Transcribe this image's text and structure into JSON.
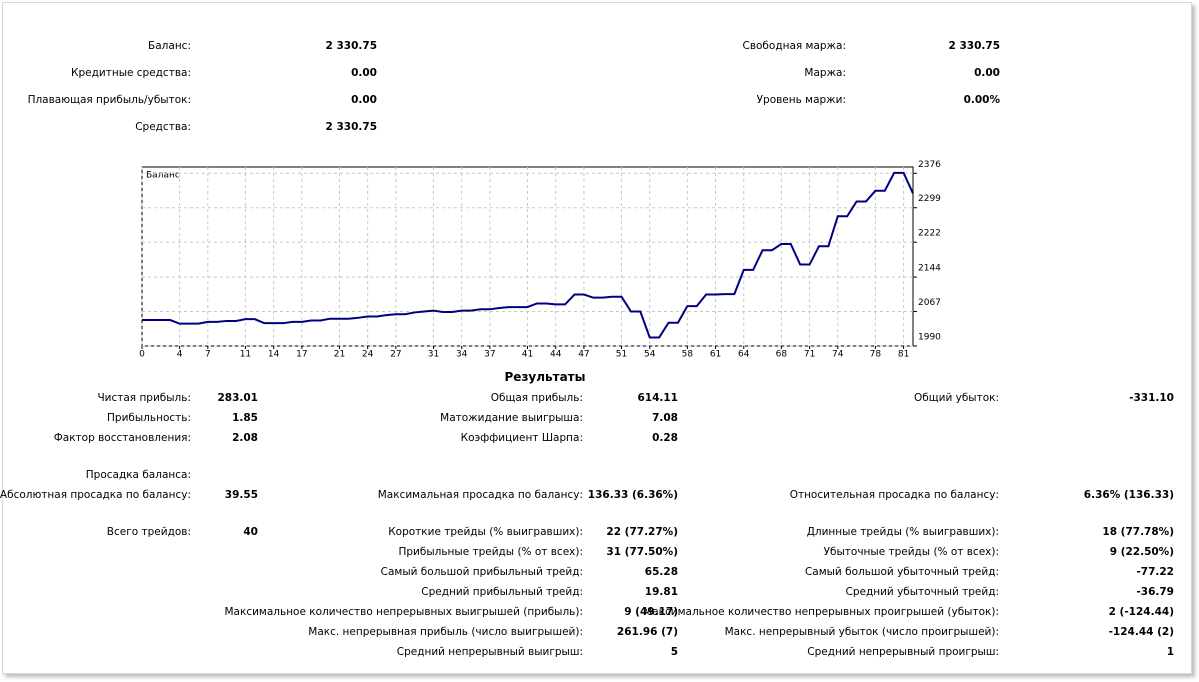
{
  "account": {
    "rows": [
      {
        "left": {
          "label": "Баланс:",
          "value": "2 330.75"
        },
        "right": {
          "label": "Свободная маржа:",
          "value": "2 330.75"
        }
      },
      {
        "left": {
          "label": "Кредитные средства:",
          "value": "0.00"
        },
        "right": {
          "label": "Маржа:",
          "value": "0.00"
        }
      },
      {
        "left": {
          "label": "Плавающая прибыль/убыток:",
          "value": "0.00"
        },
        "right": {
          "label": "Уровень маржи:",
          "value": "0.00%"
        }
      },
      {
        "left": {
          "label": "Средства:",
          "value": "2 330.75"
        }
      }
    ]
  },
  "chart_data": {
    "type": "line",
    "title": "Баланс",
    "color": "#000080",
    "grid": true,
    "x": [
      0,
      1,
      2,
      3,
      4,
      5,
      6,
      7,
      8,
      9,
      10,
      11,
      12,
      13,
      14,
      15,
      16,
      17,
      18,
      19,
      20,
      21,
      22,
      23,
      24,
      25,
      26,
      27,
      28,
      29,
      30,
      31,
      32,
      33,
      34,
      35,
      36,
      37,
      38,
      39,
      40,
      41,
      42,
      43,
      44,
      45,
      46,
      47,
      48,
      49,
      50,
      51,
      52,
      53,
      54,
      55,
      56,
      57,
      58,
      59,
      60,
      61,
      62,
      63,
      64,
      65,
      66,
      67,
      68,
      69,
      70,
      71,
      72,
      73,
      74,
      75,
      76,
      77,
      78,
      79,
      80,
      81,
      82
    ],
    "values": [
      2048,
      2048,
      2048,
      2048,
      2040,
      2040,
      2040,
      2044,
      2044,
      2046,
      2046,
      2050,
      2050,
      2041,
      2041,
      2041,
      2044,
      2044,
      2047,
      2047,
      2051,
      2051,
      2051,
      2053,
      2056,
      2056,
      2059,
      2061,
      2061,
      2065,
      2067,
      2069,
      2066,
      2066,
      2069,
      2069,
      2072,
      2072,
      2075,
      2077,
      2077,
      2077,
      2085,
      2085,
      2083,
      2083,
      2105,
      2105,
      2098,
      2098,
      2100,
      2100,
      2067,
      2067,
      2009,
      2009,
      2042,
      2042,
      2079,
      2079,
      2105,
      2105,
      2106,
      2106,
      2160,
      2160,
      2204,
      2204,
      2218,
      2218,
      2172,
      2172,
      2213,
      2213,
      2280,
      2280,
      2313,
      2313,
      2337,
      2337,
      2377,
      2377,
      2331
    ],
    "xlim": [
      0,
      82
    ],
    "xticks": [
      0,
      4,
      7,
      11,
      14,
      17,
      21,
      24,
      27,
      31,
      34,
      37,
      41,
      44,
      47,
      51,
      54,
      58,
      61,
      64,
      68,
      71,
      74,
      78,
      81
    ],
    "ylim": [
      1990,
      2390
    ],
    "yticks": [
      1990,
      2067,
      2144,
      2222,
      2299,
      2376
    ]
  },
  "results": {
    "title": "Результаты",
    "rows": [
      {
        "left": {
          "label": "Чистая прибыль:",
          "value": "283.01"
        },
        "middle": {
          "label": "Общая прибыль:",
          "value": "614.11"
        },
        "right": {
          "label": "Общий убыток:",
          "value": "-331.10"
        }
      },
      {
        "left": {
          "label": "Прибыльность:",
          "value": "1.85"
        },
        "middle": {
          "label": "Матожидание выигрыша:",
          "value": "7.08"
        }
      },
      {
        "left": {
          "label": "Фактор восстановления:",
          "value": "2.08"
        },
        "middle": {
          "label": "Коэффициент Шарпа:",
          "value": "0.28"
        }
      },
      {
        "left": {
          "label": "Просадка баланса:"
        }
      },
      {
        "left": {
          "label": "Абсолютная просадка по балансу:",
          "value": "39.55"
        },
        "middle": {
          "label": "Максимальная просадка по балансу:",
          "value": "136.33 (6.36%)"
        },
        "right": {
          "label": "Относительная просадка по балансу:",
          "value": "6.36% (136.33)"
        }
      },
      {
        "left": {
          "label": "Всего трейдов:",
          "value": "40"
        },
        "middle": {
          "label": "Короткие трейды (% выигравших):",
          "value": "22 (77.27%)"
        },
        "right": {
          "label": "Длинные трейды (% выигравших):",
          "value": "18 (77.78%)"
        }
      },
      {
        "middle": {
          "label": "Прибыльные трейды (% от всех):",
          "value": "31 (77.50%)"
        },
        "right": {
          "label": "Убыточные трейды (% от всех):",
          "value": "9 (22.50%)"
        }
      },
      {
        "middle": {
          "label": "Самый большой прибыльный трейд:",
          "value": "65.28"
        },
        "right": {
          "label": "Самый большой убыточный трейд:",
          "value": "-77.22"
        }
      },
      {
        "middle": {
          "label": "Средний прибыльный трейд:",
          "value": "19.81"
        },
        "right": {
          "label": "Средний убыточный трейд:",
          "value": "-36.79"
        }
      },
      {
        "middle": {
          "label": "Максимальное количество непрерывных выигрышей (прибыль):",
          "value": "9 (49.17)"
        },
        "right": {
          "label": "Максимальное количество непрерывных проигрышей (убыток):",
          "value": "2 (-124.44)"
        }
      },
      {
        "middle": {
          "label": "Макс. непрерывная прибыль (число выигрышей):",
          "value": "261.96 (7)"
        },
        "right": {
          "label": "Макс. непрерывный убыток (число проигрышей):",
          "value": "-124.44 (2)"
        }
      },
      {
        "middle": {
          "label": "Средний непрерывный выигрыш:",
          "value": "5"
        },
        "right": {
          "label": "Средний непрерывный проигрыш:",
          "value": "1"
        }
      }
    ]
  }
}
